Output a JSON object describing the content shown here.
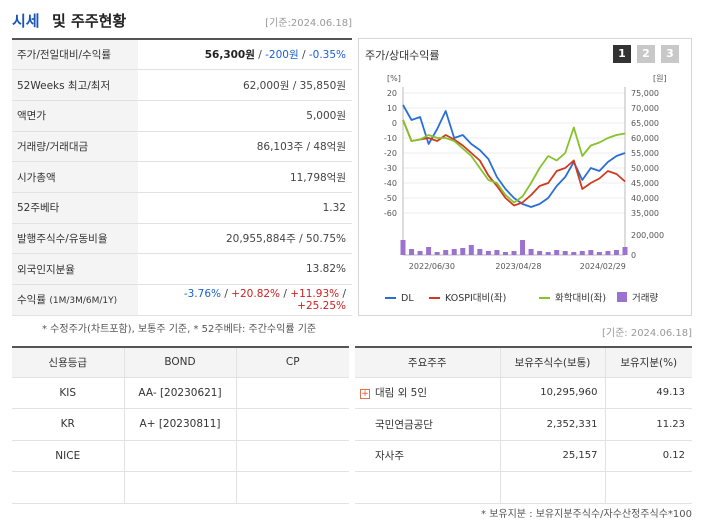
{
  "header": {
    "title1": "시세",
    "title2": "및 주주현황",
    "base_date": "[기준:2024.06.18]"
  },
  "stats": {
    "price_label": "주가/전일대비/수익률",
    "price": "56,300원",
    "sep1": " / ",
    "change": "-200원",
    "sep2": " / ",
    "change_pct": "-0.35%",
    "rows": [
      {
        "label": "52Weeks 최고/최저",
        "value": "62,000원 / 35,850원"
      },
      {
        "label": "액면가",
        "value": "5,000원"
      },
      {
        "label": "거래량/거래대금",
        "value": "86,103주 / 48억원"
      },
      {
        "label": "시가총액",
        "value": "11,798억원"
      },
      {
        "label": "52주베타",
        "value": "1.32"
      },
      {
        "label": "발행주식수/유동비율",
        "value": "20,955,884주 / 50.75%"
      },
      {
        "label": "외국인지분율",
        "value": "13.82%"
      }
    ],
    "return_label": "수익률",
    "return_sub": "(1M/3M/6M/1Y)",
    "r1": "-3.76%",
    "r2": "+20.82%",
    "r3": "+11.93%",
    "r4": "+25.25%",
    "slash": " / "
  },
  "chart_panel": {
    "title": "주가/상대수익률",
    "tabs": [
      "1",
      "2",
      "3"
    ],
    "left_unit": "[%]",
    "right_unit": "[원]",
    "legend": [
      "DL",
      "KOSPI대비(좌)",
      "화학대비(좌)",
      "거래량"
    ]
  },
  "chart_data": {
    "type": "line",
    "x_ticks": [
      "2022/06/30",
      "2023/04/28",
      "2024/02/29"
    ],
    "left_axis": {
      "ticks": [
        20,
        10,
        0,
        -10,
        -20,
        -30,
        -40,
        -50,
        -60
      ],
      "ylim": [
        -60,
        20
      ]
    },
    "right_axis": {
      "ticks": [
        "75,000",
        "70,000",
        "65,000",
        "60,000",
        "55,000",
        "50,000",
        "45,000",
        "40,000",
        "35,000"
      ],
      "ylim": [
        35000,
        75000
      ]
    },
    "volume_axis": {
      "ticks": [
        "200,000",
        "0"
      ],
      "ylim": [
        0,
        200000
      ]
    },
    "series": [
      {
        "name": "DL",
        "color": "#2a6fd6",
        "axis": "right",
        "values": [
          71000,
          66000,
          67000,
          58000,
          63000,
          69000,
          60000,
          61000,
          58000,
          56000,
          53000,
          47000,
          43000,
          40000,
          38000,
          37000,
          38000,
          40000,
          44000,
          47000,
          52000,
          46000,
          50000,
          49000,
          52000,
          54000,
          55000
        ]
      },
      {
        "name": "KOSPI대비(좌)",
        "color": "#d03a1f",
        "axis": "left",
        "values": [
          2,
          -12,
          -11,
          -10,
          -12,
          -8,
          -11,
          -15,
          -20,
          -25,
          -35,
          -42,
          -50,
          -55,
          -53,
          -48,
          -42,
          -40,
          -32,
          -30,
          -25,
          -44,
          -40,
          -37,
          -32,
          -34,
          -39
        ]
      },
      {
        "name": "화학대비(좌)",
        "color": "#86c22c",
        "axis": "left",
        "values": [
          2,
          -12,
          -11,
          -8,
          -10,
          -10,
          -12,
          -17,
          -22,
          -30,
          -38,
          -40,
          -48,
          -53,
          -49,
          -40,
          -30,
          -22,
          -25,
          -20,
          -3,
          -22,
          -15,
          -13,
          -10,
          -8,
          -7
        ]
      }
    ],
    "volume": [
      150000,
      60000,
      40000,
      80000,
      30000,
      50000,
      60000,
      70000,
      100000,
      60000,
      40000,
      50000,
      30000,
      40000,
      150000,
      60000,
      40000,
      30000,
      50000,
      40000,
      30000,
      40000,
      50000,
      30000,
      40000,
      50000,
      80000
    ],
    "volume_color": "#9b72cf"
  },
  "notes": {
    "note1": "* 수정주가(차트포함), 보통주 기준, * 52주베타: 주간수익률 기준",
    "base_date2": "[기준: 2024.06.18]",
    "note2": "* 보유지분 : 보유지분주식수/자수산정주식수*100"
  },
  "credit": {
    "headers": [
      "신용등급",
      "BOND",
      "CP"
    ],
    "rows": [
      {
        "agency": "KIS",
        "bond": "AA-  [20230621]",
        "cp": ""
      },
      {
        "agency": "KR",
        "bond": "A+  [20230811]",
        "cp": ""
      },
      {
        "agency": "NICE",
        "bond": "",
        "cp": ""
      },
      {
        "agency": "",
        "bond": "",
        "cp": ""
      }
    ]
  },
  "holders": {
    "headers": [
      "주요주주",
      "보유주식수(보통)",
      "보유지분(%)"
    ],
    "rows": [
      {
        "name": "대림 외 5인",
        "shares": "10,295,960",
        "pct": "49.13",
        "expand": "+"
      },
      {
        "name": "국민연금공단",
        "shares": "2,352,331",
        "pct": "11.23",
        "expand": ""
      },
      {
        "name": "자사주",
        "shares": "25,157",
        "pct": "0.12",
        "expand": ""
      },
      {
        "name": "",
        "shares": "",
        "pct": "",
        "expand": ""
      }
    ]
  }
}
